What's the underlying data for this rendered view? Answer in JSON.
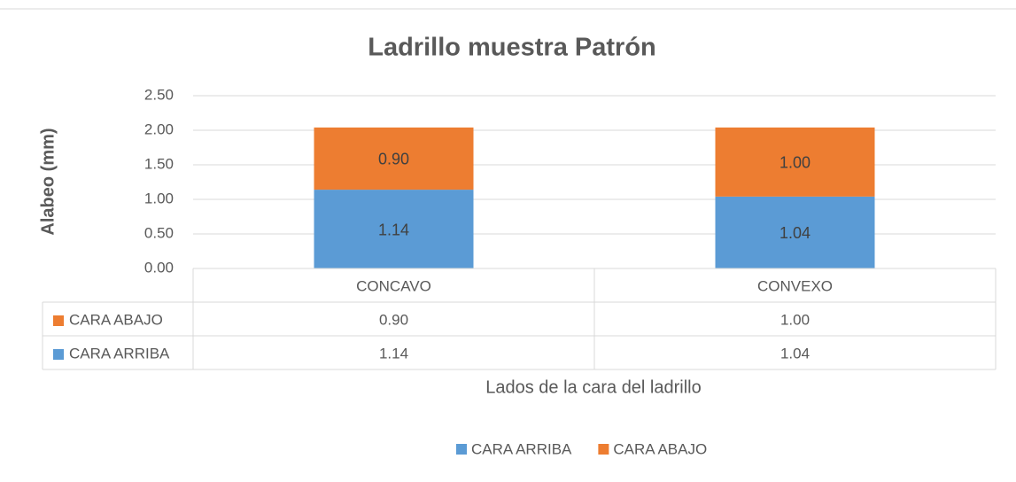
{
  "chart_data": {
    "type": "stacked_bar",
    "title": "Ladrillo muestra Patrón",
    "ylabel": "Alabeo (mm)",
    "xlabel": "Lados de la cara del ladrillo",
    "categories": [
      "CONCAVO",
      "CONVEXO"
    ],
    "series": [
      {
        "name": "CARA ARRIBA",
        "color": "#5b9bd5",
        "values": [
          1.14,
          1.04
        ],
        "value_labels": [
          "1.14",
          "1.04"
        ]
      },
      {
        "name": "CARA ABAJO",
        "color": "#ed7d31",
        "values": [
          0.9,
          1
        ],
        "value_labels": [
          "0.90",
          "1.00"
        ]
      }
    ],
    "ylim": [
      0,
      2.5
    ],
    "yticks": [
      {
        "value": 0,
        "label": "0.00"
      },
      {
        "value": 0.5,
        "label": "0.50"
      },
      {
        "value": 1,
        "label": "1.00"
      },
      {
        "value": 1.5,
        "label": "1.50"
      },
      {
        "value": 2,
        "label": "2.00"
      },
      {
        "value": 2.5,
        "label": "2.50"
      }
    ],
    "grid": true,
    "data_table": true,
    "legend": "bottom"
  }
}
